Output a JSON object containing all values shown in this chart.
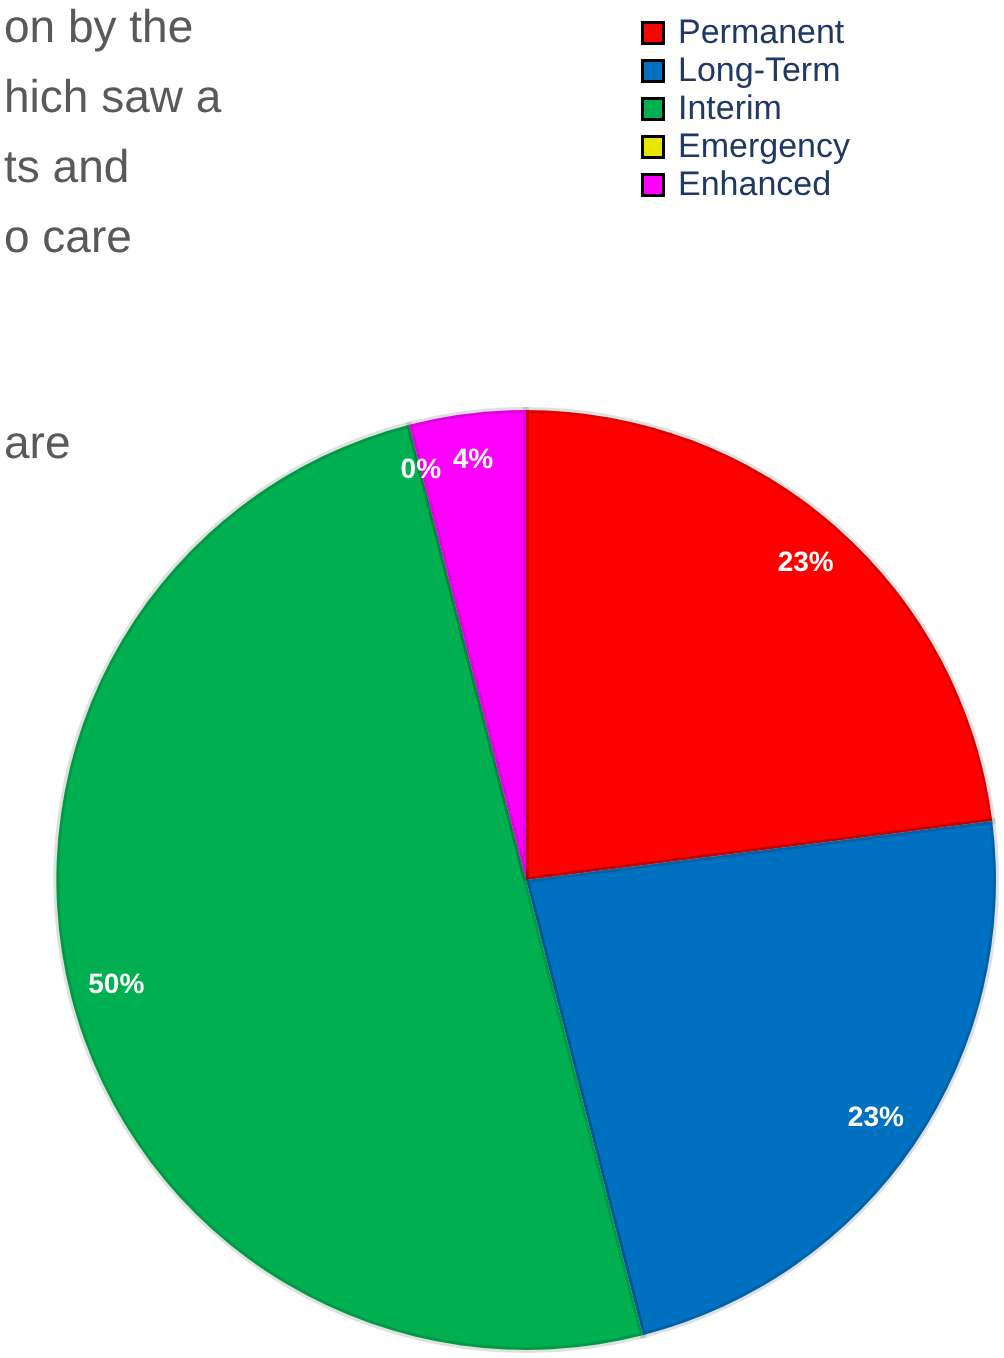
{
  "chart_data": {
    "type": "pie",
    "categories": [
      "Permanent",
      "Long-Term",
      "Interim",
      "Emergency",
      "Enhanced"
    ],
    "values": [
      23,
      23,
      50,
      0,
      4
    ],
    "colors": [
      "#ff0000",
      "#0070c0",
      "#00b050",
      "#e6e600",
      "#ff00ff"
    ],
    "value_labels": [
      "23%",
      "23%",
      "50%",
      "0%",
      "4%"
    ],
    "legend": "top right",
    "annotations": [
      "on by the",
      "hich saw a",
      "ts and",
      "o care",
      "are"
    ]
  }
}
